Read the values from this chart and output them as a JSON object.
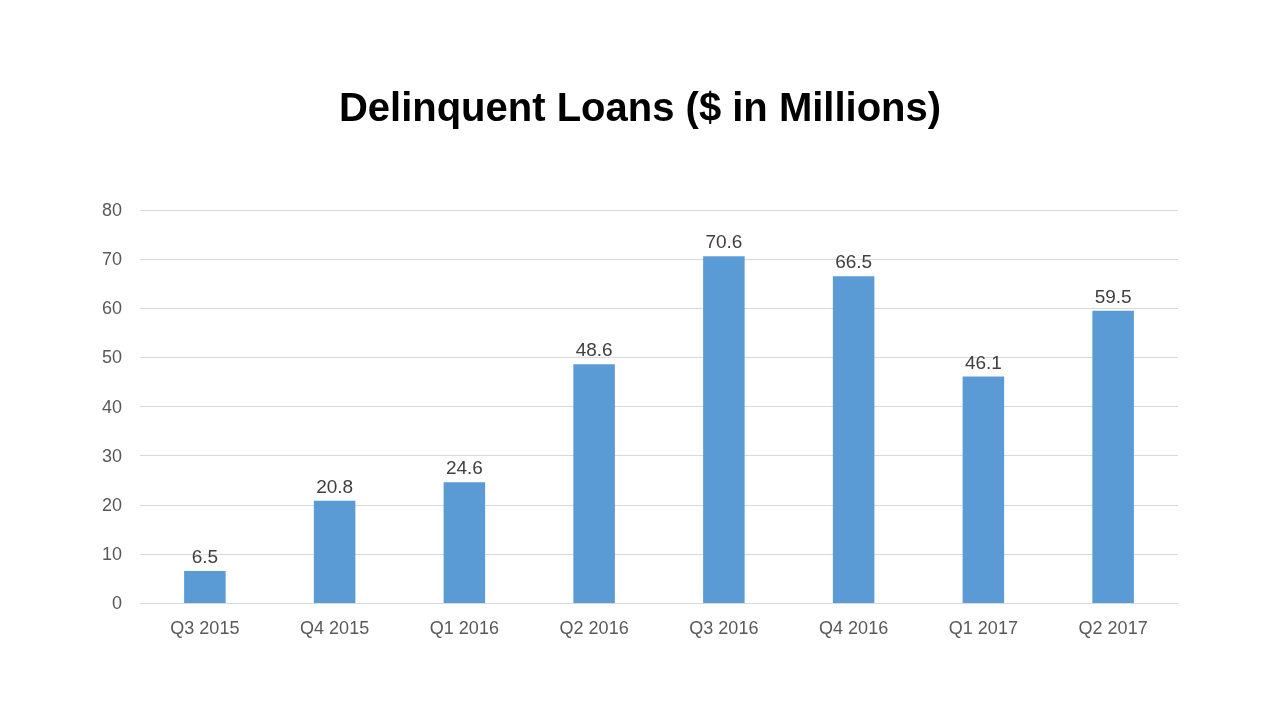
{
  "chart_data": {
    "type": "bar",
    "title": "Delinquent Loans ($ in Millions)",
    "categories": [
      "Q3 2015",
      "Q4 2015",
      "Q1 2016",
      "Q2 2016",
      "Q3 2016",
      "Q4 2016",
      "Q1 2017",
      "Q2 2017"
    ],
    "values": [
      6.5,
      20.8,
      24.6,
      48.6,
      70.6,
      66.5,
      46.1,
      59.5
    ],
    "color": "#5b9bd5",
    "ylim": [
      0,
      80
    ],
    "yticks": [
      0,
      10,
      20,
      30,
      40,
      50,
      60,
      70,
      80
    ],
    "grid": "y",
    "data_labels": true
  }
}
